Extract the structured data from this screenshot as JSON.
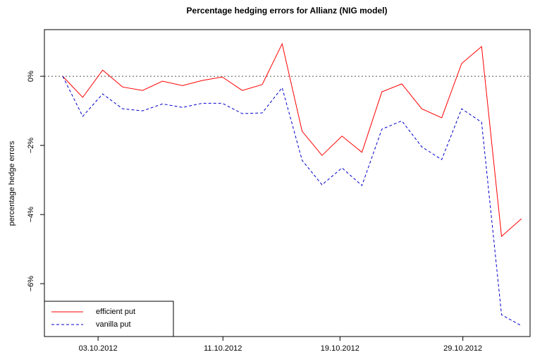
{
  "chart_data": {
    "type": "line",
    "title": "Percentage hedging errors for Allianz (NIG model)",
    "y_label": "percentage hedge errors",
    "x": [
      1,
      2,
      3,
      4,
      5,
      6,
      7,
      8,
      9,
      10,
      11,
      12,
      13,
      14,
      15,
      16,
      17,
      18,
      19,
      20,
      21,
      22,
      23,
      24
    ],
    "xlim": [
      0.08,
      24.43
    ],
    "xticks": [
      {
        "value": 2.77,
        "label": "03.10.2012"
      },
      {
        "value": 9.03,
        "label": "11.10.2012"
      },
      {
        "value": 14.9,
        "label": "19.10.2012"
      },
      {
        "value": 21.06,
        "label": "29.10.2012"
      }
    ],
    "ylim": [
      -7.53,
      1.35
    ],
    "yticks": [
      {
        "value": 0,
        "label": "0%"
      },
      {
        "value": -2,
        "label": "−2%"
      },
      {
        "value": -4,
        "label": "−4%"
      },
      {
        "value": -6,
        "label": "−6%"
      }
    ],
    "reference_line": 0,
    "legend": "bottom-left",
    "series": [
      {
        "name": "efficient put",
        "color": "#ff0000",
        "dash": "solid",
        "values": [
          0,
          -0.61,
          0.18,
          -0.31,
          -0.41,
          -0.14,
          -0.27,
          -0.12,
          -0.02,
          -0.41,
          -0.24,
          0.94,
          -1.59,
          -2.29,
          -1.73,
          -2.2,
          -0.45,
          -0.22,
          -0.94,
          -1.2,
          0.37,
          0.86,
          -4.63,
          -4.12
        ]
      },
      {
        "name": "vanilla put",
        "color": "#0000cc",
        "dash": "dashed",
        "values": [
          0,
          -1.16,
          -0.51,
          -0.94,
          -1.0,
          -0.8,
          -0.9,
          -0.78,
          -0.78,
          -1.08,
          -1.06,
          -0.33,
          -2.43,
          -3.14,
          -2.65,
          -3.16,
          -1.53,
          -1.29,
          -2.04,
          -2.41,
          -0.94,
          -1.33,
          -6.9,
          -7.22
        ]
      }
    ]
  }
}
